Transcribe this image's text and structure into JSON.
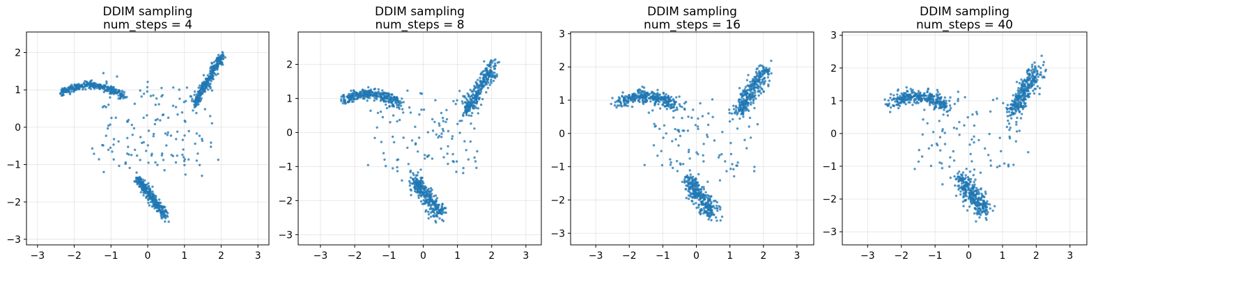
{
  "figure": {
    "accent_color": "#1f77b4"
  },
  "chart_data": [
    {
      "type": "scatter",
      "title": "DDIM sampling",
      "subtitle": "num_steps = 4",
      "num_steps": 4,
      "spread": 0.45,
      "xlim": [
        -3.3,
        3.3
      ],
      "ylim": [
        -3.15,
        2.55
      ],
      "xticks": [
        -3,
        -2,
        -1,
        0,
        1,
        2,
        3
      ],
      "yticks": [
        -3,
        -2,
        -1,
        0,
        1,
        2
      ],
      "grid": true,
      "legend": "none",
      "series": [
        {
          "name": "samples",
          "x": [],
          "y": []
        }
      ]
    },
    {
      "type": "scatter",
      "title": "DDIM sampling",
      "subtitle": "num_steps = 8",
      "num_steps": 8,
      "spread": 0.8,
      "xlim": [
        -3.65,
        3.45
      ],
      "ylim": [
        -3.3,
        2.95
      ],
      "xticks": [
        -3,
        -2,
        -1,
        0,
        1,
        2,
        3
      ],
      "yticks": [
        -3,
        -2,
        -1,
        0,
        1,
        2
      ],
      "grid": true,
      "legend": "none",
      "series": [
        {
          "name": "samples",
          "x": [],
          "y": []
        }
      ]
    },
    {
      "type": "scatter",
      "title": "DDIM sampling",
      "subtitle": "num_steps = 16",
      "num_steps": 16,
      "spread": 0.92,
      "xlim": [
        -3.75,
        3.5
      ],
      "ylim": [
        -3.35,
        3.05
      ],
      "xticks": [
        -3,
        -2,
        -1,
        0,
        1,
        2,
        3
      ],
      "yticks": [
        -3,
        -2,
        -1,
        0,
        1,
        2,
        3
      ],
      "grid": true,
      "legend": "none",
      "series": [
        {
          "name": "samples",
          "x": [],
          "y": []
        }
      ]
    },
    {
      "type": "scatter",
      "title": "DDIM sampling",
      "subtitle": "num_steps = 40",
      "num_steps": 40,
      "spread": 1.0,
      "xlim": [
        -3.75,
        3.5
      ],
      "ylim": [
        -3.4,
        3.1
      ],
      "xticks": [
        -3,
        -2,
        -1,
        0,
        1,
        2,
        3
      ],
      "yticks": [
        -3,
        -2,
        -1,
        0,
        1,
        2,
        3
      ],
      "grid": true,
      "legend": "none",
      "series": [
        {
          "name": "samples",
          "x": [],
          "y": []
        }
      ]
    }
  ]
}
